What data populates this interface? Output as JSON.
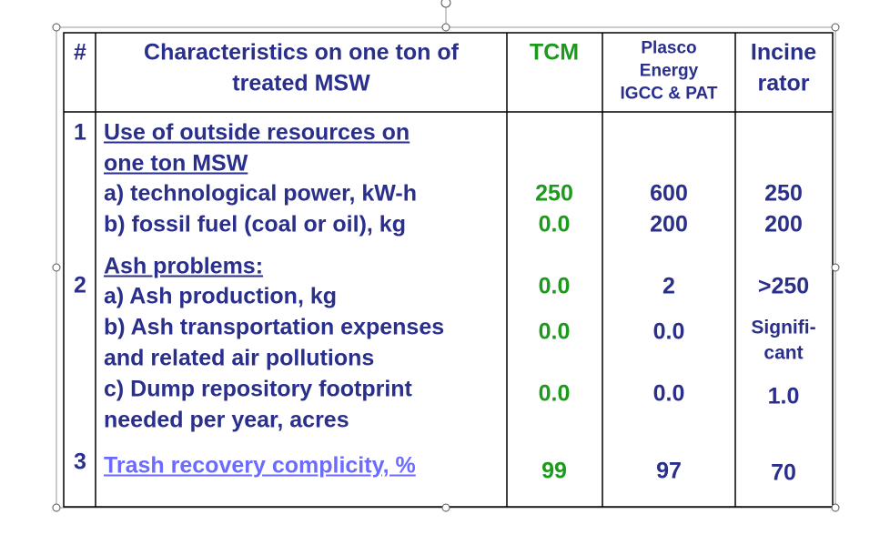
{
  "header": {
    "number": "#",
    "characteristics": [
      "Characteristics on one ton of",
      "treated MSW"
    ],
    "tcm": "TCM",
    "plasco": [
      "Plasco",
      "Energy",
      "IGCC & PAT"
    ],
    "incinerator": [
      "Incine",
      "rator"
    ]
  },
  "rows": [
    {
      "number": "1",
      "heading": [
        "Use of outside resources on",
        "one ton MSW"
      ],
      "items": [
        {
          "label": [
            "a) technological power, kW-h"
          ],
          "tcm": "250",
          "plasco": "600",
          "incinerator": "250"
        },
        {
          "label": [
            "b) fossil fuel (coal or oil), kg"
          ],
          "tcm": "0.0",
          "plasco": "200",
          "incinerator": "200"
        }
      ]
    },
    {
      "number": "2",
      "heading": [
        "Ash problems:"
      ],
      "items": [
        {
          "label": [
            "a) Ash production, kg"
          ],
          "tcm": "0.0",
          "plasco": "2",
          "incinerator": ">250"
        },
        {
          "label": [
            "b) Ash transportation expenses",
            "and related air pollutions"
          ],
          "tcm": "0.0",
          "plasco": "0.0",
          "incinerator": [
            "Signifi-",
            "cant"
          ]
        },
        {
          "label": [
            "c) Dump repository footprint",
            "needed per year, acres"
          ],
          "tcm": "0.0",
          "plasco": "0.0",
          "incinerator": "1.0"
        }
      ]
    },
    {
      "number": "3",
      "heading": [
        "Trash recovery complicity, %"
      ],
      "items": [
        {
          "tcm": "99",
          "plasco": "97",
          "incinerator": "70"
        }
      ]
    }
  ]
}
